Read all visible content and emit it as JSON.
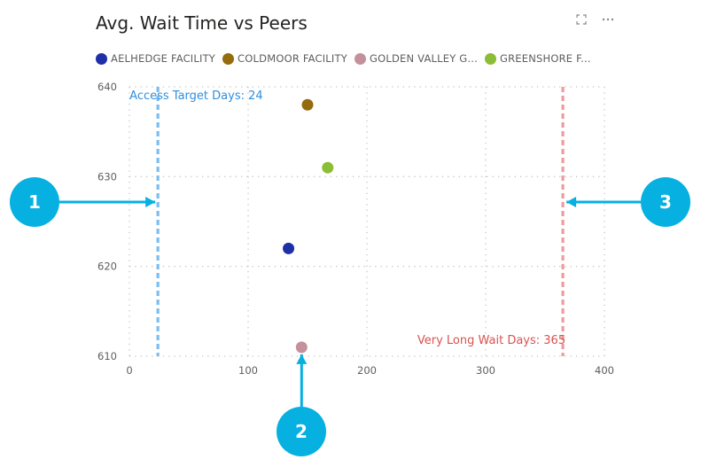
{
  "title": "Avg. Wait Time vs Peers",
  "icons": [
    "expand-icon",
    "more-options-icon"
  ],
  "legend": [
    {
      "label": "AELHEDGE FACILITY",
      "color": "#1f2fa6"
    },
    {
      "label": "COLDMOOR FACILITY",
      "color": "#946b0d"
    },
    {
      "label": "GOLDEN VALLEY G...",
      "color": "#c4909c"
    },
    {
      "label": "GREENSHORE F...",
      "color": "#8bbd35"
    }
  ],
  "chart_data": {
    "type": "scatter",
    "xlim": [
      0,
      400
    ],
    "ylim": [
      610,
      640
    ],
    "x_ticks": [
      0,
      100,
      200,
      300,
      400
    ],
    "y_ticks": [
      610,
      620,
      630,
      640
    ],
    "grid": true,
    "series": [
      {
        "name": "AELHEDGE FACILITY",
        "color": "#1f2fa6",
        "points": [
          {
            "x": 134,
            "y": 622
          }
        ]
      },
      {
        "name": "COLDMOOR FACILITY",
        "color": "#946b0d",
        "points": [
          {
            "x": 150,
            "y": 638
          }
        ]
      },
      {
        "name": "GOLDEN VALLEY G...",
        "color": "#c4909c",
        "points": [
          {
            "x": 145,
            "y": 611
          }
        ]
      },
      {
        "name": "GREENSHORE F...",
        "color": "#8bbd35",
        "points": [
          {
            "x": 167,
            "y": 631
          }
        ]
      }
    ],
    "reference_lines": [
      {
        "label": "Access Target Days: 24",
        "value": 24,
        "color": "#7bbdf2",
        "label_color": "#2e8fde"
      },
      {
        "label": "Very Long Wait Days: 365",
        "value": 365,
        "color": "#ef9a9d",
        "label_color": "#d9534f"
      }
    ]
  },
  "callouts": [
    {
      "label": "1",
      "target": "Access Target Days: 24"
    },
    {
      "label": "2",
      "target": "GOLDEN VALLEY G..."
    },
    {
      "label": "3",
      "target": "Very Long Wait Days: 365"
    }
  ]
}
